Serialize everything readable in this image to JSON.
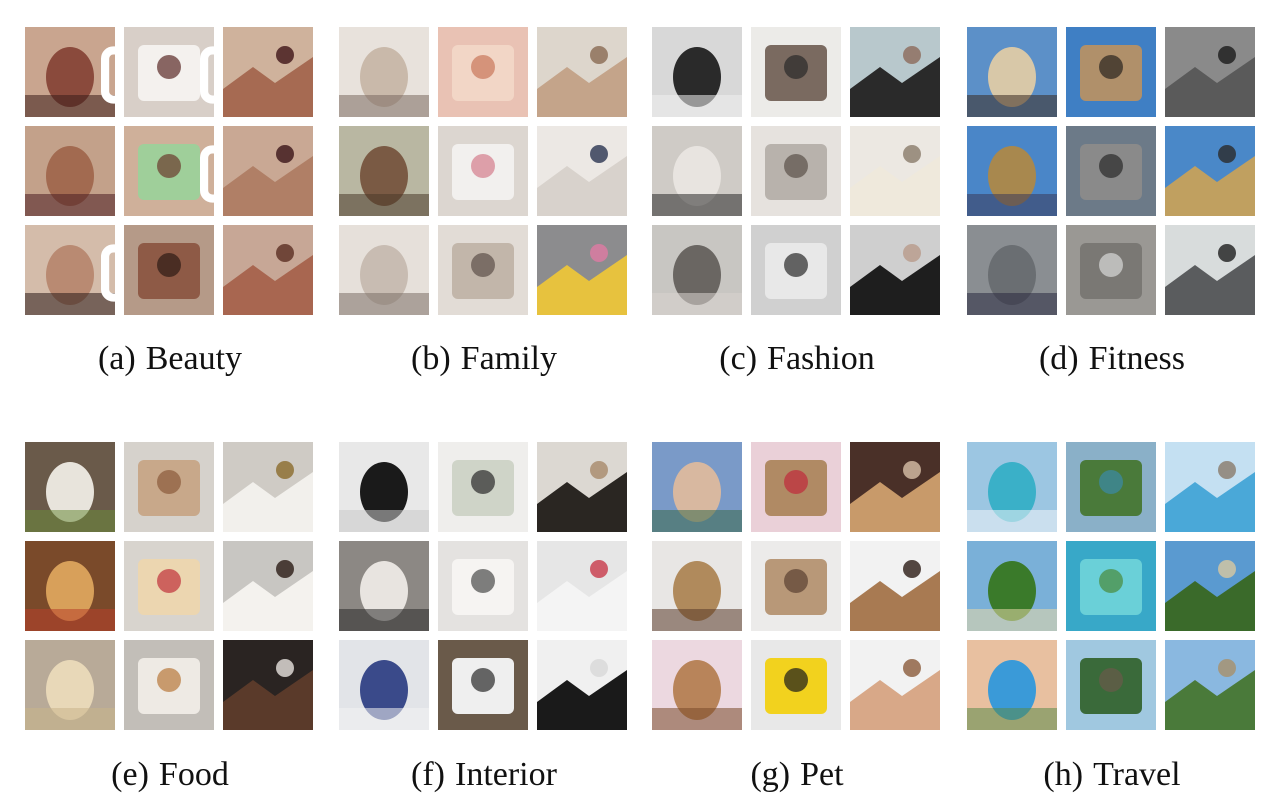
{
  "panels": [
    {
      "label": "(a)",
      "name": "Beauty",
      "tiles": [
        {
          "bg": "#c9a58f",
          "fg": "#8a4a3c",
          "accent": "#3a1d1a",
          "video": true
        },
        {
          "bg": "#d8cfc8",
          "fg": "#f4f1ee",
          "accent": "#5a2a26",
          "video": true
        },
        {
          "bg": "#cfb29c",
          "fg": "#a66a52",
          "accent": "#3f1418",
          "video": false
        },
        {
          "bg": "#c3a18a",
          "fg": "#a26a50",
          "accent": "#4a1e22",
          "video": false
        },
        {
          "bg": "#cfb09a",
          "fg": "#9fcf9a",
          "accent": "#6b3a2c",
          "video": true
        },
        {
          "bg": "#c9a894",
          "fg": "#b07f66",
          "accent": "#3b1418",
          "video": false
        },
        {
          "bg": "#d4bcaa",
          "fg": "#b98a72",
          "accent": "#2a1a18",
          "video": true
        },
        {
          "bg": "#b59a88",
          "fg": "#8e5a46",
          "accent": "#2e1a14",
          "video": false
        },
        {
          "bg": "#c7a796",
          "fg": "#a86650",
          "accent": "#5a2e22",
          "video": false
        }
      ]
    },
    {
      "label": "(b)",
      "name": "Family",
      "tiles": [
        {
          "bg": "#e8e2dc",
          "fg": "#c9b9aa",
          "accent": "#7a6a60"
        },
        {
          "bg": "#e9c2b4",
          "fg": "#f2d6c6",
          "accent": "#c9765a"
        },
        {
          "bg": "#ddd6cc",
          "fg": "#c4a48a",
          "accent": "#8a6a52"
        },
        {
          "bg": "#b9b7a2",
          "fg": "#7a5a44",
          "accent": "#4a3a2a"
        },
        {
          "bg": "#dcd6d0",
          "fg": "#f2f0ee",
          "accent": "#d47c8c"
        },
        {
          "bg": "#ece8e4",
          "fg": "#d8d2cc",
          "accent": "#2a3350"
        },
        {
          "bg": "#e6e0da",
          "fg": "#c8bcb2",
          "accent": "#7c7068"
        },
        {
          "bg": "#e2dcd6",
          "fg": "#c2b6aa",
          "accent": "#5c5048"
        },
        {
          "bg": "#8c8c8e",
          "fg": "#e7c23e",
          "accent": "#e07aa4"
        }
      ]
    },
    {
      "label": "(c)",
      "name": "Fashion",
      "tiles": [
        {
          "bg": "#d8d8d8",
          "fg": "#2a2a2a",
          "accent": "#f0f0f0"
        },
        {
          "bg": "#ecebe8",
          "fg": "#7a6a60",
          "accent": "#2a2a2a"
        },
        {
          "bg": "#b8c8cc",
          "fg": "#2a2a2a",
          "accent": "#8c6a5a"
        },
        {
          "bg": "#cfcbc6",
          "fg": "#e8e4e0",
          "accent": "#2a2a2a"
        },
        {
          "bg": "#e6e2de",
          "fg": "#b8b2ac",
          "accent": "#5a5048"
        },
        {
          "bg": "#ece8e2",
          "fg": "#efe9dc",
          "accent": "#8a7a6a"
        },
        {
          "bg": "#c8c6c2",
          "fg": "#6a6662",
          "accent": "#d8d4d0"
        },
        {
          "bg": "#d0d0d0",
          "fg": "#e8e8e8",
          "accent": "#2a2a2a"
        },
        {
          "bg": "#cfcfcf",
          "fg": "#1e1e1e",
          "accent": "#b89a8a"
        }
      ]
    },
    {
      "label": "(d)",
      "name": "Fitness",
      "tiles": [
        {
          "bg": "#5c90c8",
          "fg": "#d8c8a8",
          "accent": "#3a2a20"
        },
        {
          "bg": "#3f7fc4",
          "fg": "#b0906a",
          "accent": "#2a2420"
        },
        {
          "bg": "#8a8a8a",
          "fg": "#5a5a5a",
          "accent": "#1a1a1a"
        },
        {
          "bg": "#4a86c8",
          "fg": "#a8884e",
          "accent": "#3a3a5a"
        },
        {
          "bg": "#6c7a88",
          "fg": "#8a8a8a",
          "accent": "#2a2a2a"
        },
        {
          "bg": "#4a88c8",
          "fg": "#c0a060",
          "accent": "#2a2a2a"
        },
        {
          "bg": "#8a8e92",
          "fg": "#6a6e72",
          "accent": "#2a2a40"
        },
        {
          "bg": "#9a9894",
          "fg": "#7a7874",
          "accent": "#d8d8d8"
        },
        {
          "bg": "#d8dcdc",
          "fg": "#5a5c5e",
          "accent": "#1e1e1e"
        }
      ]
    },
    {
      "label": "(e)",
      "name": "Food",
      "tiles": [
        {
          "bg": "#6a5a4a",
          "fg": "#e8e4dc",
          "accent": "#6a8a3a"
        },
        {
          "bg": "#d6d2cc",
          "fg": "#c8a88a",
          "accent": "#8a5a3a"
        },
        {
          "bg": "#cfcbc5",
          "fg": "#f2f0ec",
          "accent": "#8a6a2a"
        },
        {
          "bg": "#7a4a2a",
          "fg": "#d8a05a",
          "accent": "#b8402a"
        },
        {
          "bg": "#d8d4ce",
          "fg": "#ecd6b0",
          "accent": "#c0303a"
        },
        {
          "bg": "#c8c6c2",
          "fg": "#f4f2ee",
          "accent": "#2a1a14"
        },
        {
          "bg": "#b8aa98",
          "fg": "#e8d8b8",
          "accent": "#c8b48a"
        },
        {
          "bg": "#c2beb8",
          "fg": "#eeeae4",
          "accent": "#b8783a"
        },
        {
          "bg": "#2a2422",
          "fg": "#5a3a2a",
          "accent": "#e8e4e0"
        }
      ]
    },
    {
      "label": "(f)",
      "name": "Interior",
      "tiles": [
        {
          "bg": "#e8e8e8",
          "fg": "#1a1a1a",
          "accent": "#c8c8c8"
        },
        {
          "bg": "#efeeec",
          "fg": "#cfd4c8",
          "accent": "#2a2a2a"
        },
        {
          "bg": "#dcd8d2",
          "fg": "#2a2622",
          "accent": "#a88a6a"
        },
        {
          "bg": "#8c8884",
          "fg": "#e8e4e0",
          "accent": "#2a2a2a"
        },
        {
          "bg": "#e4e2e0",
          "fg": "#f6f4f2",
          "accent": "#4a4a4a"
        },
        {
          "bg": "#e6e6e6",
          "fg": "#f4f4f4",
          "accent": "#c83a4a"
        },
        {
          "bg": "#e2e4e8",
          "fg": "#3a4a8a",
          "accent": "#f2f2f2"
        },
        {
          "bg": "#6a5a4a",
          "fg": "#efefef",
          "accent": "#2a2a2a"
        },
        {
          "bg": "#f0f0f0",
          "fg": "#1a1a1a",
          "accent": "#d8d8d8"
        }
      ]
    },
    {
      "label": "(g)",
      "name": "Pet",
      "tiles": [
        {
          "bg": "#7a9ac8",
          "fg": "#d8b8a0",
          "accent": "#3a6a4a"
        },
        {
          "bg": "#ead0d8",
          "fg": "#b08a64",
          "accent": "#c02a3a"
        },
        {
          "bg": "#4a3028",
          "fg": "#c89a6a",
          "accent": "#d8c0a8"
        },
        {
          "bg": "#e8e6e4",
          "fg": "#b08a5c",
          "accent": "#5a3a2a"
        },
        {
          "bg": "#ecebea",
          "fg": "#b89878",
          "accent": "#5a4030"
        },
        {
          "bg": "#f2f2f2",
          "fg": "#a87a52",
          "accent": "#2a1a14"
        },
        {
          "bg": "#ecd8e0",
          "fg": "#b8845a",
          "accent": "#7a4a2a"
        },
        {
          "bg": "#e8e8e8",
          "fg": "#f2d21e",
          "accent": "#1a1a1a"
        },
        {
          "bg": "#f2f2f2",
          "fg": "#d8a888",
          "accent": "#8a5a3a"
        }
      ]
    },
    {
      "label": "(h)",
      "name": "Travel",
      "tiles": [
        {
          "bg": "#9cc6e2",
          "fg": "#3ab0c8",
          "accent": "#f0f4f8"
        },
        {
          "bg": "#8ab0c8",
          "fg": "#4a7a3a",
          "accent": "#3a8aa8"
        },
        {
          "bg": "#c4e0f2",
          "fg": "#4aa8d8",
          "accent": "#8a7a6a"
        },
        {
          "bg": "#7ab0d8",
          "fg": "#3a7a2a",
          "accent": "#e8d8a8"
        },
        {
          "bg": "#38a8c8",
          "fg": "#6ad0d8",
          "accent": "#4a8a3a"
        },
        {
          "bg": "#5a9ad0",
          "fg": "#3a6a2a",
          "accent": "#d8c8a0"
        },
        {
          "bg": "#e8c0a0",
          "fg": "#3a9ad8",
          "accent": "#5a8a4a"
        },
        {
          "bg": "#a0c8e0",
          "fg": "#3a6a3a",
          "accent": "#6a5a4a"
        },
        {
          "bg": "#8ab8e0",
          "fg": "#4a7a3a",
          "accent": "#a8906a"
        }
      ]
    }
  ]
}
